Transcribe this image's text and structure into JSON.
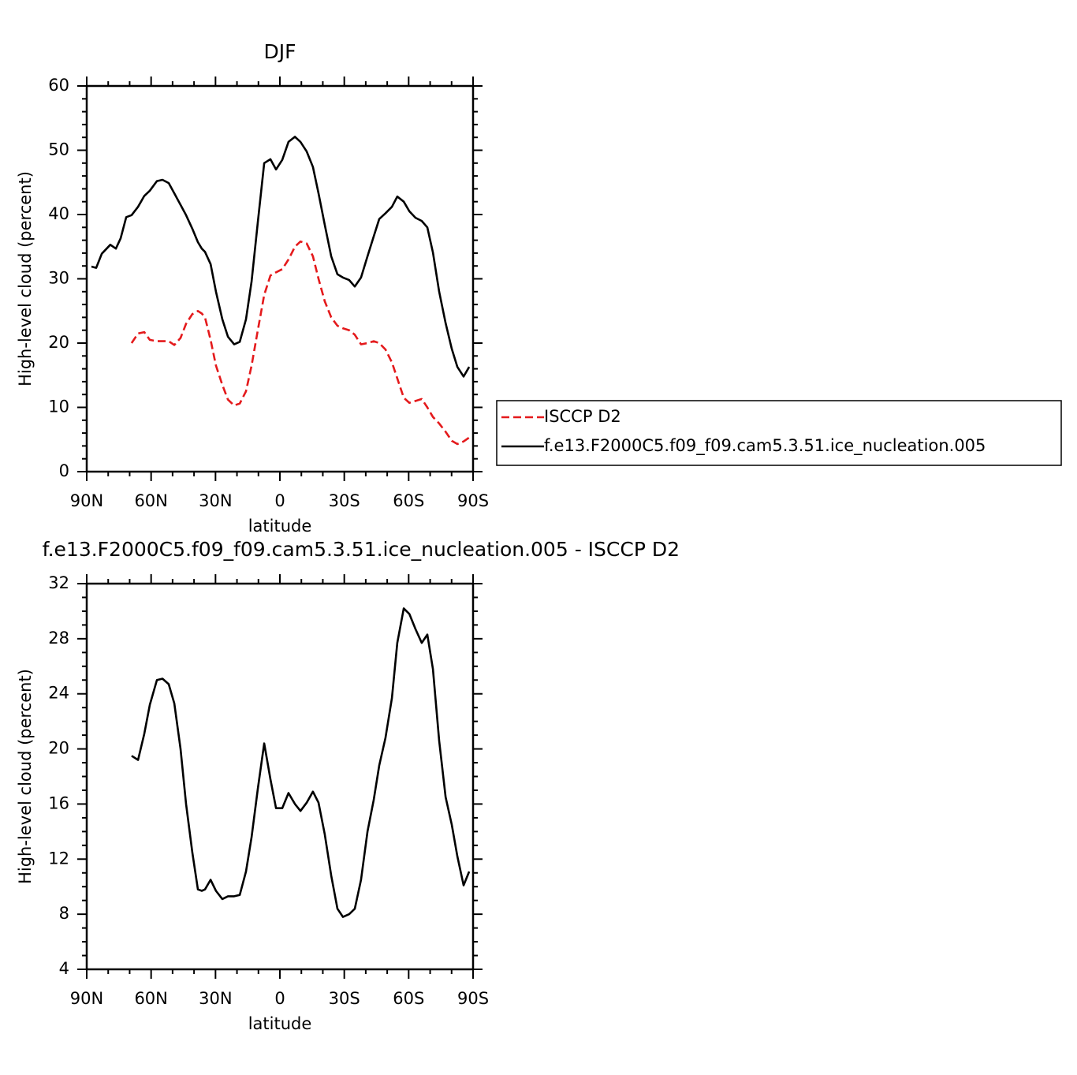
{
  "chart_data": [
    {
      "type": "line",
      "title": "DJF",
      "xlabel": "latitude",
      "ylabel": "High-level cloud (percent)",
      "x": [
        87.8,
        85.6,
        83.0,
        79.0,
        76.4,
        74.2,
        71.6,
        69.1,
        66.1,
        63.2,
        60.6,
        57.3,
        54.7,
        51.8,
        49.2,
        46.3,
        43.7,
        40.8,
        38.2,
        36.4,
        34.9,
        32.3,
        29.8,
        26.8,
        24.2,
        21.3,
        18.7,
        15.8,
        13.2,
        10.3,
        7.3,
        4.4,
        1.8,
        -1.1,
        -4.0,
        -7.0,
        -9.6,
        -12.5,
        -15.4,
        -18.0,
        -20.9,
        -23.9,
        -26.8,
        -29.4,
        -32.3,
        -34.9,
        -37.8,
        -40.8,
        -43.7,
        -46.3,
        -49.2,
        -52.2,
        -54.7,
        -57.7,
        -60.3,
        -63.2,
        -66.1,
        -68.7,
        -71.3,
        -74.2,
        -77.2,
        -80.1,
        -82.7,
        -85.6,
        -88.2
      ],
      "series": [
        {
          "name": "ISCCP D2",
          "color": "#e41a1c",
          "dashed": true,
          "values": [
            null,
            null,
            null,
            null,
            null,
            null,
            null,
            20.0,
            21.5,
            21.7,
            20.5,
            20.3,
            20.3,
            20.3,
            19.7,
            20.8,
            23.0,
            24.5,
            25.0,
            24.6,
            24.0,
            20.5,
            16.5,
            13.5,
            11.2,
            10.3,
            10.6,
            12.5,
            16.5,
            22.0,
            27.5,
            30.5,
            31.0,
            31.5,
            33.0,
            35.0,
            35.8,
            35.5,
            33.5,
            30.0,
            26.5,
            24.0,
            22.7,
            22.3,
            22.0,
            21.3,
            19.8,
            20.0,
            20.3,
            20.0,
            19.0,
            17.0,
            14.5,
            11.5,
            10.7,
            11.0,
            11.3,
            10.0,
            8.5,
            7.5,
            6.2,
            4.8,
            4.3,
            4.7,
            5.3
          ]
        },
        {
          "name": "f.e13.F2000C5.f09_f09.cam5.3.51.ice_nucleation.005",
          "color": "#000000",
          "dashed": false,
          "values": [
            31.9,
            31.7,
            33.9,
            35.3,
            34.7,
            36.3,
            39.6,
            39.9,
            41.2,
            42.9,
            43.7,
            45.2,
            45.4,
            44.9,
            43.3,
            41.5,
            39.9,
            37.8,
            35.7,
            34.7,
            34.2,
            32.3,
            28.0,
            23.7,
            21.0,
            19.8,
            20.2,
            23.7,
            29.6,
            38.8,
            48.0,
            48.6,
            47.0,
            48.5,
            51.3,
            52.1,
            51.3,
            49.8,
            47.4,
            43.3,
            38.4,
            33.5,
            30.7,
            30.2,
            29.8,
            28.8,
            30.2,
            33.5,
            36.6,
            39.3,
            40.2,
            41.2,
            42.8,
            42.0,
            40.5,
            39.5,
            39.0,
            38.0,
            34.1,
            28.0,
            23.1,
            19.1,
            16.3,
            14.8,
            16.3
          ]
        }
      ],
      "xlim": [
        90,
        -90
      ],
      "xticks": [
        {
          "value": 90,
          "label": "90N"
        },
        {
          "value": 60,
          "label": "60N"
        },
        {
          "value": 30,
          "label": "30N"
        },
        0,
        {
          "value": -30,
          "label": "30S"
        },
        {
          "value": -60,
          "label": "60S"
        },
        {
          "value": -90,
          "label": "90S"
        }
      ],
      "ylim": [
        0,
        60
      ],
      "yticks": [
        0,
        10,
        20,
        30,
        40,
        50,
        60
      ],
      "legend": "right"
    },
    {
      "type": "line",
      "title": "f.e13.F2000C5.f09_f09.cam5.3.51.ice_nucleation.005 - ISCCP D2",
      "xlabel": "latitude",
      "ylabel": "High-level cloud (percent)",
      "x": [
        69.1,
        66.1,
        63.2,
        60.6,
        57.3,
        54.7,
        51.8,
        49.2,
        46.3,
        43.7,
        40.8,
        38.2,
        36.4,
        34.9,
        32.3,
        29.8,
        26.8,
        24.2,
        21.3,
        18.7,
        15.8,
        13.2,
        10.3,
        7.3,
        4.4,
        1.8,
        -1.1,
        -4.0,
        -7.0,
        -9.6,
        -12.5,
        -15.4,
        -18.0,
        -20.9,
        -23.9,
        -26.8,
        -29.4,
        -32.3,
        -34.9,
        -37.8,
        -40.8,
        -43.7,
        -46.3,
        -49.2,
        -52.2,
        -54.7,
        -57.7,
        -60.3,
        -63.2,
        -66.1,
        -68.7,
        -71.3,
        -74.2,
        -77.2,
        -80.1,
        -82.7,
        -85.6,
        -88.2
      ],
      "color": "#000000",
      "values": [
        19.5,
        19.2,
        21.1,
        23.2,
        25.0,
        25.1,
        24.7,
        23.3,
        20.0,
        16.0,
        12.5,
        9.8,
        9.7,
        9.8,
        10.5,
        9.7,
        9.1,
        9.3,
        9.3,
        9.4,
        11.1,
        13.6,
        17.1,
        20.4,
        17.8,
        15.7,
        15.7,
        16.8,
        16.0,
        15.5,
        16.1,
        16.9,
        16.1,
        13.8,
        10.8,
        8.4,
        7.8,
        8.0,
        8.4,
        10.5,
        14.0,
        16.3,
        18.8,
        20.8,
        23.7,
        27.7,
        30.2,
        29.8,
        28.7,
        27.7,
        28.3,
        25.8,
        20.6,
        16.5,
        14.5,
        12.2,
        10.1,
        11.1
      ],
      "xlim": [
        90,
        -90
      ],
      "xticks": [
        {
          "value": 90,
          "label": "90N"
        },
        {
          "value": 60,
          "label": "60N"
        },
        {
          "value": 30,
          "label": "30N"
        },
        0,
        {
          "value": -30,
          "label": "30S"
        },
        {
          "value": -60,
          "label": "60S"
        },
        {
          "value": -90,
          "label": "90S"
        }
      ],
      "ylim": [
        4,
        32
      ],
      "yticks": [
        4,
        8,
        12,
        16,
        20,
        24,
        28,
        32
      ]
    }
  ]
}
